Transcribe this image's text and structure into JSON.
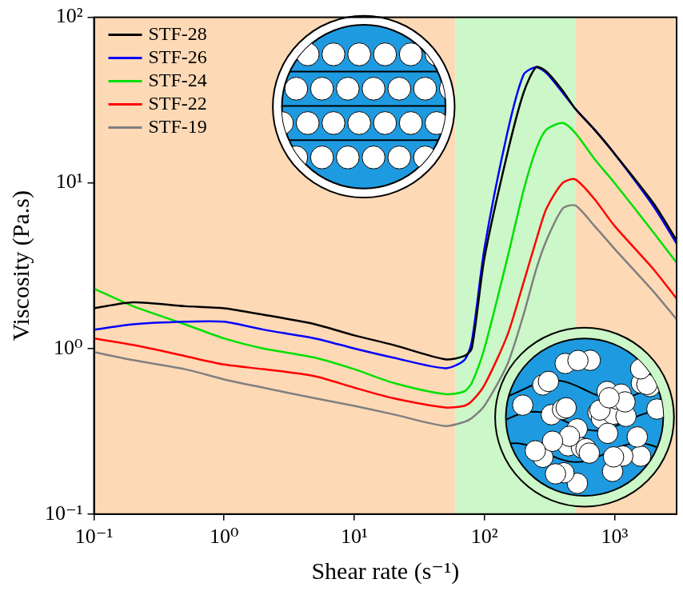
{
  "chart_data": {
    "type": "line",
    "x_label": "Shear rate (s⁻¹)",
    "y_label": "Viscosity (Pa.s)",
    "x": [
      0.1,
      0.2,
      0.5,
      1,
      2,
      5,
      10,
      20,
      50,
      70,
      80,
      100,
      150,
      200,
      250,
      300,
      400,
      500,
      700,
      1000,
      2000,
      3000
    ],
    "series": [
      {
        "name": "STF-28",
        "color": "#000000",
        "values": [
          1.75,
          1.9,
          1.8,
          1.75,
          1.6,
          1.4,
          1.2,
          1.05,
          0.86,
          0.9,
          1.0,
          3.5,
          15,
          35,
          50,
          47,
          36,
          28,
          21,
          15,
          7.5,
          4.5
        ]
      },
      {
        "name": "STF-26",
        "color": "#0000ff",
        "values": [
          1.3,
          1.4,
          1.45,
          1.45,
          1.3,
          1.15,
          1.0,
          0.88,
          0.76,
          0.85,
          1.1,
          4,
          20,
          45,
          50,
          46,
          35,
          28,
          21,
          15,
          7.2,
          4.3
        ]
      },
      {
        "name": "STF-24",
        "color": "#00e000",
        "values": [
          2.3,
          1.8,
          1.4,
          1.15,
          1.0,
          0.88,
          0.75,
          0.62,
          0.53,
          0.55,
          0.62,
          1.0,
          3.5,
          9,
          16,
          21,
          23,
          20,
          14,
          10,
          5,
          3.3
        ]
      },
      {
        "name": "STF-22",
        "color": "#ff0000",
        "values": [
          1.15,
          1.05,
          0.9,
          0.8,
          0.75,
          0.68,
          0.58,
          0.5,
          0.44,
          0.45,
          0.48,
          0.6,
          1.2,
          2.5,
          4.5,
          7,
          10,
          10.5,
          8,
          5.5,
          3,
          2
        ]
      },
      {
        "name": "STF-19",
        "color": "#808080",
        "values": [
          0.95,
          0.85,
          0.75,
          0.65,
          0.58,
          0.5,
          0.45,
          0.4,
          0.34,
          0.36,
          0.38,
          0.45,
          0.8,
          1.6,
          3,
          4.5,
          7,
          7.3,
          5.5,
          4,
          2.2,
          1.5
        ]
      }
    ],
    "xlim": [
      0.1,
      3000
    ],
    "xticks": [
      {
        "value": 0.1,
        "label": "10⁻¹"
      },
      {
        "value": 1,
        "label": "10⁰"
      },
      {
        "value": 10,
        "label": "10¹"
      },
      {
        "value": 100,
        "label": "10²"
      },
      {
        "value": 1000,
        "label": "10³"
      }
    ],
    "ylim": [
      0.1,
      100
    ],
    "yticks": [
      {
        "value": 0.1,
        "label": "10⁻¹"
      },
      {
        "value": 1,
        "label": "10⁰"
      },
      {
        "value": 10,
        "label": "10¹"
      },
      {
        "value": 100,
        "label": "10²"
      }
    ],
    "log": true,
    "grid": false,
    "legend": "upper left",
    "regions": [
      {
        "from": 0.1,
        "to": 60,
        "color": "#fdd9b6"
      },
      {
        "from": 60,
        "to": 500,
        "color": "#ccf7c8"
      },
      {
        "from": 500,
        "to": 3000,
        "color": "#fdd9b6"
      }
    ]
  }
}
